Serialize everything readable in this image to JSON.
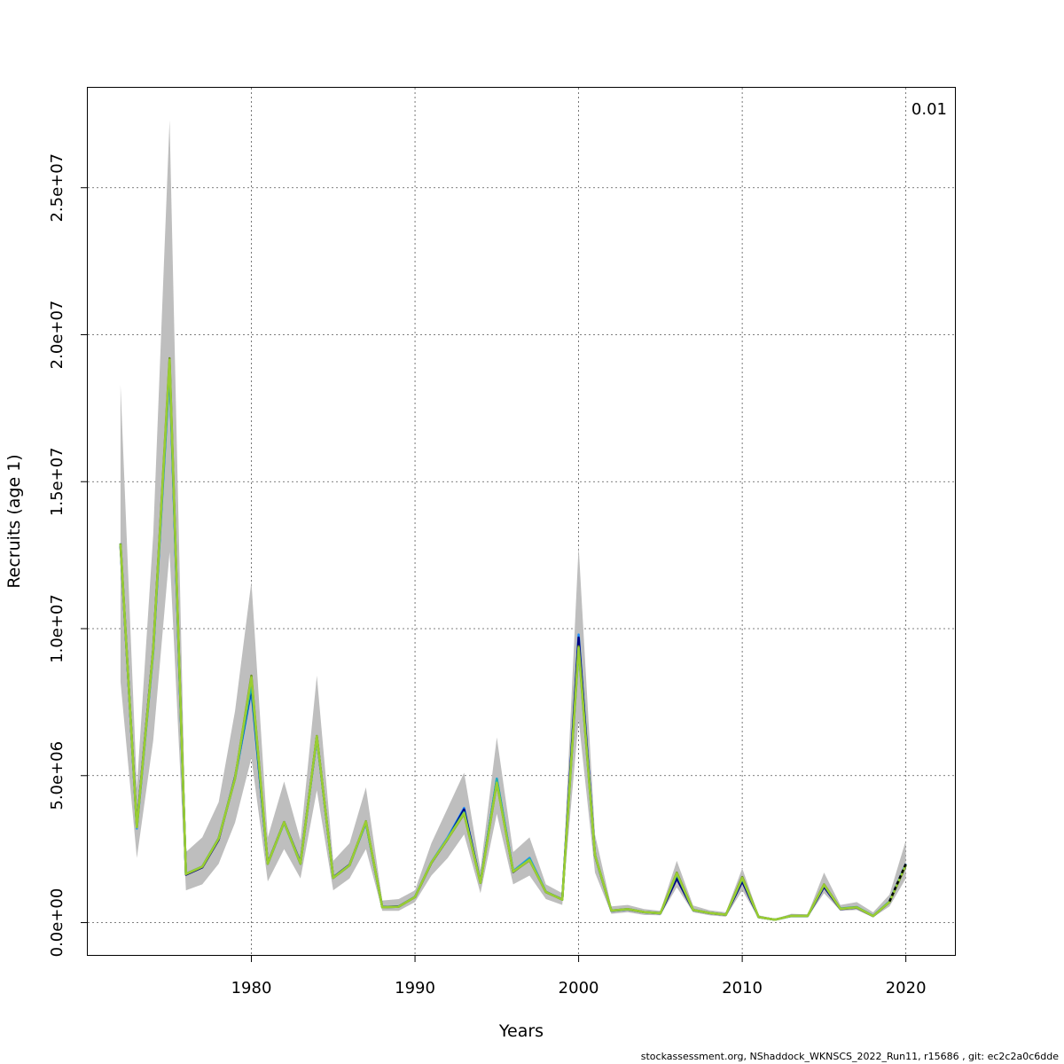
{
  "footer": "stockassessment.org, NShaddock_WKNSCS_2022_Run11, r15686 , git: ec2c2a0c6dde",
  "chart_data": {
    "type": "line",
    "title": "",
    "xlabel": "Years",
    "ylabel": "Recruits (age 1)",
    "corner_label": "0.01",
    "xlim": [
      1970,
      2023
    ],
    "ylim": [
      -1100000,
      28400000
    ],
    "x_ticks": [
      1980,
      1990,
      2000,
      2010,
      2020
    ],
    "x_tick_labels": [
      "1980",
      "1990",
      "2000",
      "2010",
      "2020"
    ],
    "y_ticks": [
      0,
      5000000,
      10000000,
      15000000,
      20000000,
      25000000
    ],
    "y_tick_labels": [
      "0.0e+00",
      "5.0e+06",
      "1.0e+07",
      "1.5e+07",
      "2.0e+07",
      "2.5e+07"
    ],
    "grid": true,
    "x": [
      1972,
      1973,
      1974,
      1975,
      1976,
      1977,
      1978,
      1979,
      1980,
      1981,
      1982,
      1983,
      1984,
      1985,
      1986,
      1987,
      1988,
      1989,
      1990,
      1991,
      1992,
      1993,
      1994,
      1995,
      1996,
      1997,
      1998,
      1999,
      2000,
      2001,
      2002,
      2003,
      2004,
      2005,
      2006,
      2007,
      2008,
      2009,
      2010,
      2011,
      2012,
      2013,
      2014,
      2015,
      2016,
      2017,
      2018,
      2019,
      2020
    ],
    "band": {
      "color": "#bebebe",
      "lower": [
        8200000,
        2200000,
        6200000,
        12600000,
        1100000,
        1300000,
        2000000,
        3400000,
        5600000,
        1400000,
        2500000,
        1500000,
        4500000,
        1100000,
        1500000,
        2500000,
        400000,
        400000,
        700000,
        1600000,
        2200000,
        3000000,
        1000000,
        3700000,
        1300000,
        1600000,
        800000,
        600000,
        6900000,
        1700000,
        300000,
        350000,
        260000,
        250000,
        1200000,
        350000,
        250000,
        200000,
        1100000,
        150000,
        80000,
        180000,
        180000,
        1000000,
        400000,
        430000,
        180000,
        550000,
        1500000
      ],
      "upper": [
        18300000,
        4600000,
        13200000,
        27300000,
        2400000,
        2900000,
        4100000,
        7200000,
        11600000,
        2900000,
        4800000,
        2800000,
        8400000,
        2100000,
        2700000,
        4600000,
        750000,
        800000,
        1100000,
        2700000,
        3900000,
        5100000,
        1800000,
        6300000,
        2400000,
        2900000,
        1300000,
        1000000,
        12800000,
        3000000,
        550000,
        600000,
        460000,
        400000,
        2100000,
        580000,
        420000,
        350000,
        1850000,
        250000,
        130000,
        300000,
        280000,
        1700000,
        600000,
        700000,
        350000,
        950000,
        2800000
      ]
    },
    "series": [
      {
        "color": "#1e90ff",
        "values": [
          12900000,
          3200000,
          9200000,
          18800000,
          1650000,
          1900000,
          2850000,
          4900000,
          7900000,
          2000000,
          3400000,
          2000000,
          6300000,
          1520000,
          1950000,
          3400000,
          520000,
          540000,
          880000,
          2050000,
          2900000,
          3900000,
          1350000,
          4900000,
          1750000,
          2200000,
          1050000,
          780000,
          9800000,
          2300000,
          410000,
          460000,
          360000,
          320000,
          1550000,
          430000,
          330000,
          270000,
          1450000,
          190000,
          100000,
          230000,
          230000,
          1250000,
          470000,
          520000,
          230000,
          720000,
          2000000
        ]
      },
      {
        "color": "#000080",
        "values": [
          12800000,
          3300000,
          9300000,
          19000000,
          1630000,
          1880000,
          2820000,
          4950000,
          8000000,
          2020000,
          3420000,
          2050000,
          6320000,
          1540000,
          1970000,
          3420000,
          530000,
          550000,
          870000,
          2030000,
          2850000,
          3850000,
          1370000,
          4850000,
          1720000,
          2150000,
          1040000,
          790000,
          9700000,
          2280000,
          400000,
          450000,
          355000,
          315000,
          1500000,
          425000,
          325000,
          265000,
          1400000,
          185000,
          98000,
          225000,
          225000,
          1220000,
          460000,
          510000,
          220000,
          700000,
          1950000
        ]
      },
      {
        "color": "#20b2aa",
        "values": [
          12850000,
          3250000,
          9250000,
          18900000,
          1660000,
          1910000,
          2870000,
          4920000,
          8100000,
          2010000,
          3410000,
          2030000,
          6310000,
          1530000,
          1960000,
          3410000,
          525000,
          545000,
          875000,
          2040000,
          2870000,
          3750000,
          1360000,
          4880000,
          1740000,
          2170000,
          1045000,
          785000,
          9300000,
          2290000,
          405000,
          455000,
          357000,
          318000,
          1650000,
          428000,
          328000,
          268000,
          1500000,
          188000,
          99000,
          228000,
          228000,
          1280000,
          480000,
          530000,
          225000,
          710000,
          1980000
        ]
      },
      {
        "color": "#6b8e23",
        "values": [
          12900000,
          3250000,
          9300000,
          19200000,
          1650000,
          1900000,
          2860000,
          4900000,
          8400000,
          2000000,
          3420000,
          2000000,
          6350000,
          1520000,
          1950000,
          3450000,
          520000,
          540000,
          870000,
          2040000,
          2850000,
          3700000,
          1350000,
          4750000,
          1730000,
          2120000,
          1040000,
          780000,
          9400000,
          2300000,
          410000,
          460000,
          360000,
          320000,
          1700000,
          430000,
          330000,
          270000,
          1550000,
          190000,
          100000,
          230000,
          230000,
          1300000,
          470000,
          520000,
          225000,
          700000,
          1950000
        ]
      },
      {
        "color": "#9acd32",
        "values": [
          12880000,
          3240000,
          9280000,
          19150000,
          1655000,
          1905000,
          2855000,
          4910000,
          8350000,
          2005000,
          3415000,
          2010000,
          6340000,
          1525000,
          1955000,
          3440000,
          522000,
          542000,
          872000,
          2042000,
          2860000,
          3720000,
          1352000,
          4760000,
          1735000,
          2130000,
          1042000,
          782000,
          9350000,
          2295000,
          408000,
          458000,
          358000,
          319000,
          1680000,
          429000,
          329000,
          269000,
          1520000,
          189000,
          99500,
          229000,
          229000,
          1290000,
          468000,
          518000,
          224000,
          705000,
          1960000
        ]
      }
    ],
    "projection": {
      "color": "#000000",
      "style": "dashed",
      "x": [
        2019,
        2020
      ],
      "values": [
        720000,
        2000000
      ]
    }
  }
}
